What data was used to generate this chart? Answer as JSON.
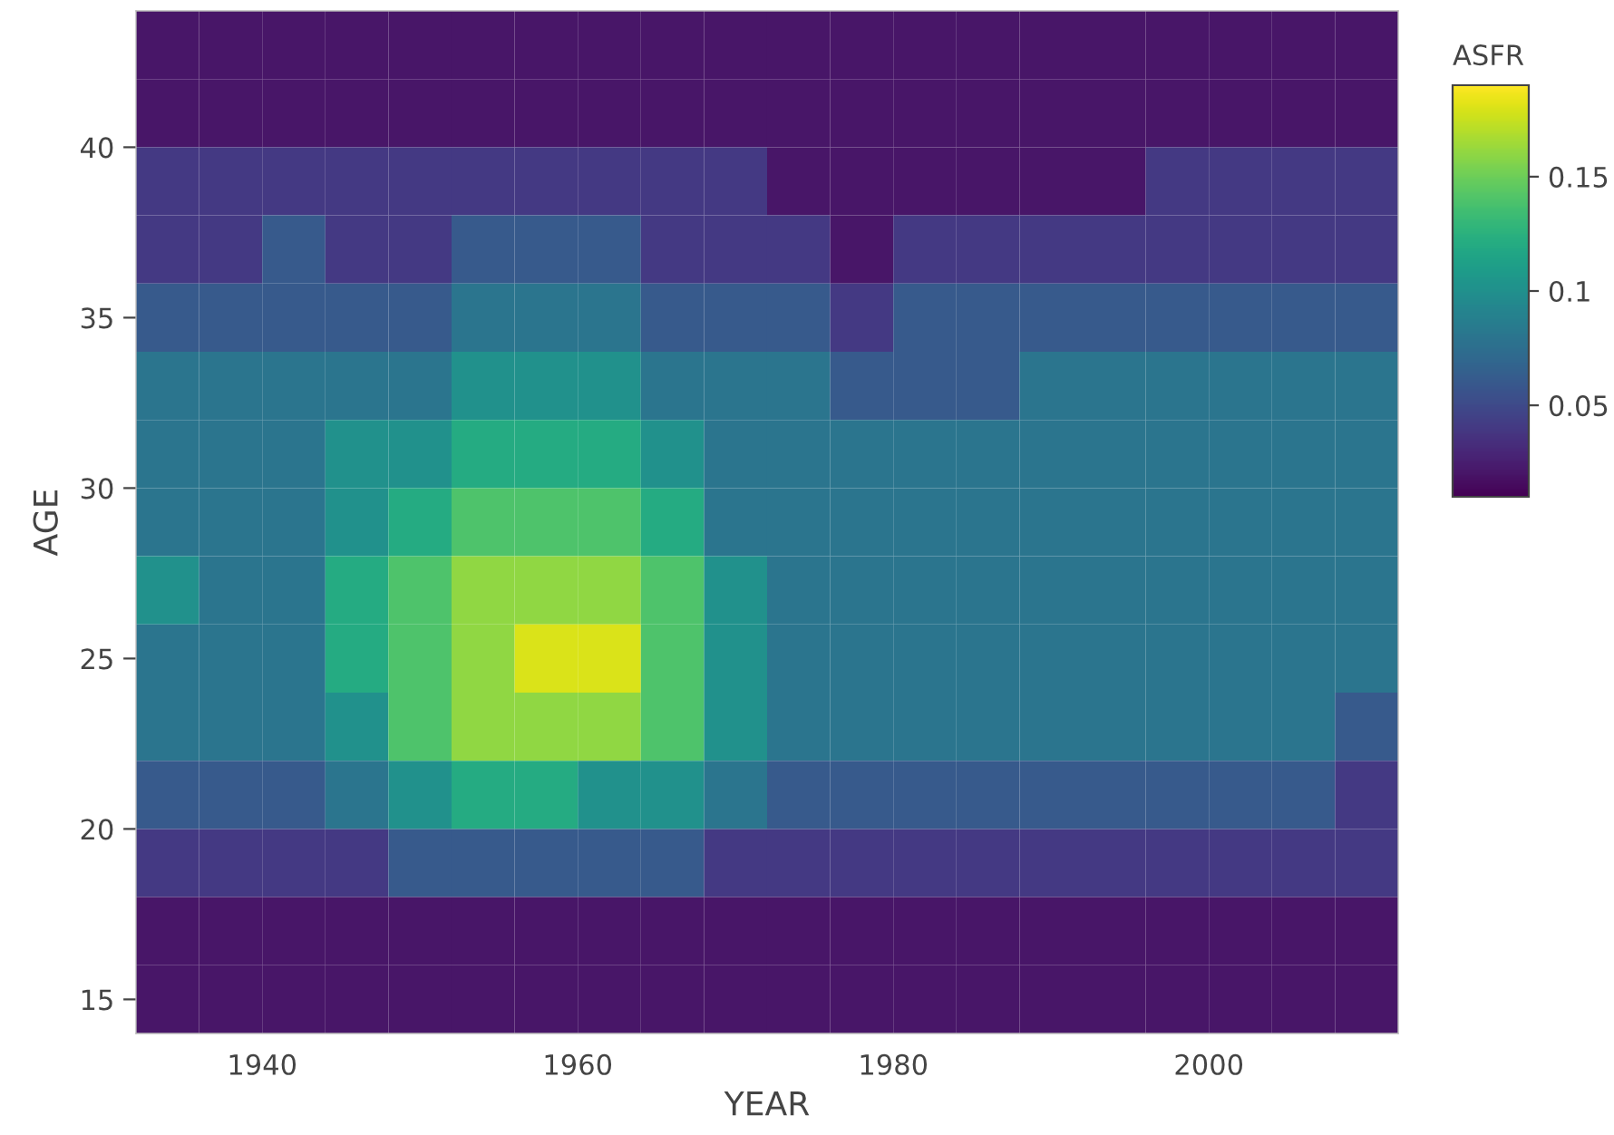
{
  "chart_data": {
    "type": "heatmap",
    "xlabel": "YEAR",
    "ylabel": "AGE",
    "clabel": "ASFR",
    "x": [
      1934,
      1938,
      1942,
      1946,
      1950,
      1954,
      1958,
      1962,
      1966,
      1970,
      1974,
      1978,
      1982,
      1986,
      1990,
      1994,
      1998,
      2002,
      2006,
      2010
    ],
    "y": [
      43,
      41,
      39,
      37,
      35,
      33,
      31,
      29,
      27,
      25,
      23,
      21,
      19,
      17,
      15
    ],
    "cells": [
      [
        0.02,
        0.02,
        0.02,
        0.02,
        0.02,
        0.02,
        0.02,
        0.02,
        0.02,
        0.02,
        0.02,
        0.02,
        0.02,
        0.02,
        0.02,
        0.02,
        0.02,
        0.02,
        0.02,
        0.02
      ],
      [
        0.02,
        0.02,
        0.02,
        0.02,
        0.02,
        0.02,
        0.02,
        0.02,
        0.02,
        0.02,
        0.02,
        0.02,
        0.02,
        0.02,
        0.02,
        0.02,
        0.02,
        0.02,
        0.02,
        0.02
      ],
      [
        0.04,
        0.04,
        0.04,
        0.04,
        0.04,
        0.04,
        0.04,
        0.04,
        0.04,
        0.04,
        0.02,
        0.02,
        0.02,
        0.02,
        0.02,
        0.02,
        0.04,
        0.04,
        0.04,
        0.04
      ],
      [
        0.04,
        0.04,
        0.06,
        0.04,
        0.04,
        0.06,
        0.06,
        0.06,
        0.04,
        0.04,
        0.04,
        0.02,
        0.04,
        0.04,
        0.04,
        0.04,
        0.04,
        0.04,
        0.04,
        0.04
      ],
      [
        0.06,
        0.06,
        0.06,
        0.06,
        0.06,
        0.08,
        0.08,
        0.08,
        0.06,
        0.06,
        0.06,
        0.04,
        0.06,
        0.06,
        0.06,
        0.06,
        0.06,
        0.06,
        0.06,
        0.06
      ],
      [
        0.08,
        0.08,
        0.08,
        0.08,
        0.08,
        0.1,
        0.1,
        0.1,
        0.08,
        0.08,
        0.08,
        0.06,
        0.06,
        0.06,
        0.08,
        0.08,
        0.08,
        0.08,
        0.08,
        0.08
      ],
      [
        0.08,
        0.08,
        0.08,
        0.1,
        0.1,
        0.12,
        0.12,
        0.12,
        0.1,
        0.08,
        0.08,
        0.08,
        0.08,
        0.08,
        0.08,
        0.08,
        0.08,
        0.08,
        0.08,
        0.08
      ],
      [
        0.08,
        0.08,
        0.08,
        0.1,
        0.12,
        0.14,
        0.14,
        0.14,
        0.12,
        0.08,
        0.08,
        0.08,
        0.08,
        0.08,
        0.08,
        0.08,
        0.08,
        0.08,
        0.08,
        0.08
      ],
      [
        0.1,
        0.08,
        0.08,
        0.12,
        0.14,
        0.16,
        0.16,
        0.16,
        0.14,
        0.1,
        0.08,
        0.08,
        0.08,
        0.08,
        0.08,
        0.08,
        0.08,
        0.08,
        0.08,
        0.08
      ],
      [
        0.08,
        0.08,
        0.08,
        0.12,
        0.14,
        0.16,
        0.18,
        0.18,
        0.14,
        0.1,
        0.08,
        0.08,
        0.08,
        0.08,
        0.08,
        0.08,
        0.08,
        0.08,
        0.08,
        0.08
      ],
      [
        0.08,
        0.08,
        0.08,
        0.1,
        0.14,
        0.16,
        0.16,
        0.16,
        0.14,
        0.1,
        0.08,
        0.08,
        0.08,
        0.08,
        0.08,
        0.08,
        0.08,
        0.08,
        0.08,
        0.06
      ],
      [
        0.06,
        0.06,
        0.06,
        0.08,
        0.1,
        0.12,
        0.12,
        0.1,
        0.1,
        0.08,
        0.06,
        0.06,
        0.06,
        0.06,
        0.06,
        0.06,
        0.06,
        0.06,
        0.06,
        0.04
      ],
      [
        0.04,
        0.04,
        0.04,
        0.04,
        0.06,
        0.06,
        0.06,
        0.06,
        0.06,
        0.04,
        0.04,
        0.04,
        0.04,
        0.04,
        0.04,
        0.04,
        0.04,
        0.04,
        0.04,
        0.04
      ],
      [
        0.02,
        0.02,
        0.02,
        0.02,
        0.02,
        0.02,
        0.02,
        0.02,
        0.02,
        0.02,
        0.02,
        0.02,
        0.02,
        0.02,
        0.02,
        0.02,
        0.02,
        0.02,
        0.02,
        0.02
      ],
      [
        0.02,
        0.02,
        0.02,
        0.02,
        0.02,
        0.02,
        0.02,
        0.02,
        0.02,
        0.02,
        0.02,
        0.02,
        0.02,
        0.02,
        0.02,
        0.02,
        0.02,
        0.02,
        0.02,
        0.02
      ]
    ],
    "xlim": [
      1932,
      2012
    ],
    "ylim": [
      14,
      44
    ],
    "xticks": [
      1940,
      1960,
      1980,
      2000
    ],
    "yticks": [
      15,
      20,
      25,
      30,
      35,
      40
    ],
    "clim": [
      0.01,
      0.19
    ],
    "cticks": [
      0.05,
      0.1,
      0.15
    ]
  }
}
